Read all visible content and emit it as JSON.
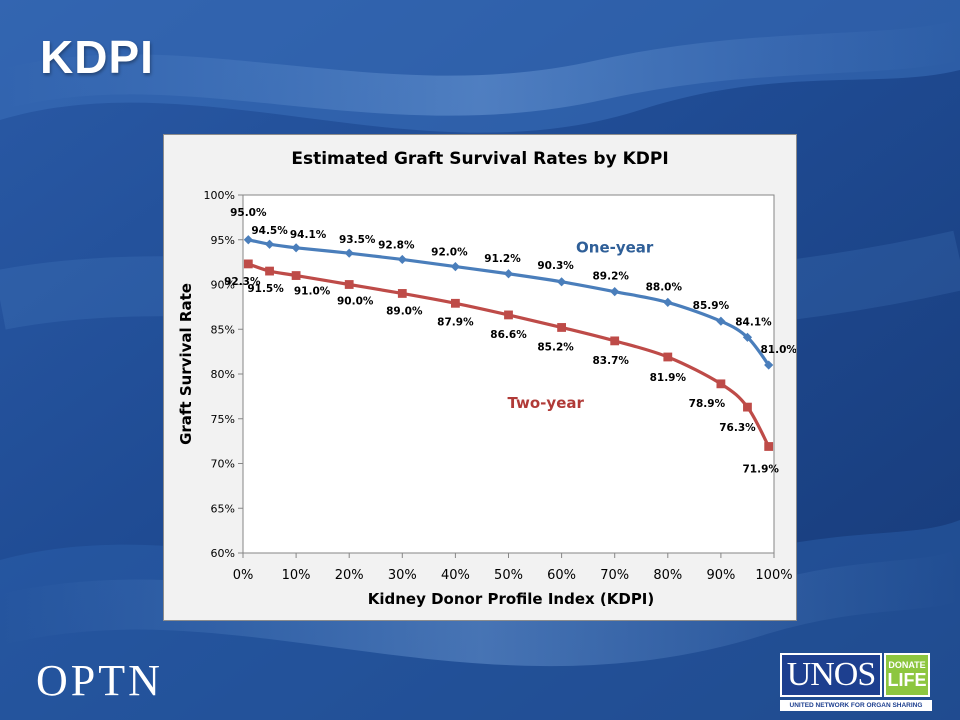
{
  "slide": {
    "title": "KDPI",
    "footer_left": "OPTN",
    "logo": {
      "main": "UNOS",
      "badge_top": "DONATE",
      "badge_bottom": "LIFE",
      "tagline": "UNITED NETWORK FOR ORGAN SHARING"
    }
  },
  "colors": {
    "background_dark": "#1b3c7d",
    "background_light": "#3f76c0",
    "one_year": "#4a7ebb",
    "two_year": "#be4b48",
    "one_year_label": "#2f5f98",
    "two_year_label": "#b03a37"
  },
  "chart_data": {
    "type": "line",
    "title": "Estimated Graft Survival Rates by KDPI",
    "xlabel": "Kidney Donor Profile Index (KDPI)",
    "ylabel": "Graft Survival Rate",
    "xlim": [
      0,
      100
    ],
    "ylim": [
      60,
      100
    ],
    "x_ticks": [
      "0%",
      "10%",
      "20%",
      "30%",
      "40%",
      "50%",
      "60%",
      "70%",
      "80%",
      "90%",
      "100%"
    ],
    "y_ticks": [
      "60%",
      "65%",
      "70%",
      "75%",
      "80%",
      "85%",
      "90%",
      "95%",
      "100%"
    ],
    "grid": false,
    "legend": "inline labels",
    "x": [
      1,
      5,
      10,
      20,
      30,
      40,
      50,
      60,
      70,
      80,
      90,
      95,
      99
    ],
    "series": [
      {
        "name": "One-year",
        "marker": "diamond",
        "values": [
          95.0,
          94.5,
          94.1,
          93.5,
          92.8,
          92.0,
          91.2,
          90.3,
          89.2,
          88.0,
          85.9,
          84.1,
          81.0
        ],
        "labels": [
          "95.0%",
          "94.5%",
          "94.1%",
          "93.5%",
          "92.8%",
          "92.0%",
          "91.2%",
          "90.3%",
          "89.2%",
          "88.0%",
          "85.9%",
          "84.1%",
          "81.0%"
        ]
      },
      {
        "name": "Two-year",
        "marker": "square",
        "values": [
          92.3,
          91.5,
          91.0,
          90.0,
          89.0,
          87.9,
          86.6,
          85.2,
          83.7,
          81.9,
          78.9,
          76.3,
          71.9
        ],
        "labels": [
          "92.3%",
          "91.5%",
          "91.0%",
          "90.0%",
          "89.0%",
          "87.9%",
          "86.6%",
          "85.2%",
          "83.7%",
          "81.9%",
          "78.9%",
          "76.3%",
          "71.9%"
        ]
      }
    ]
  }
}
